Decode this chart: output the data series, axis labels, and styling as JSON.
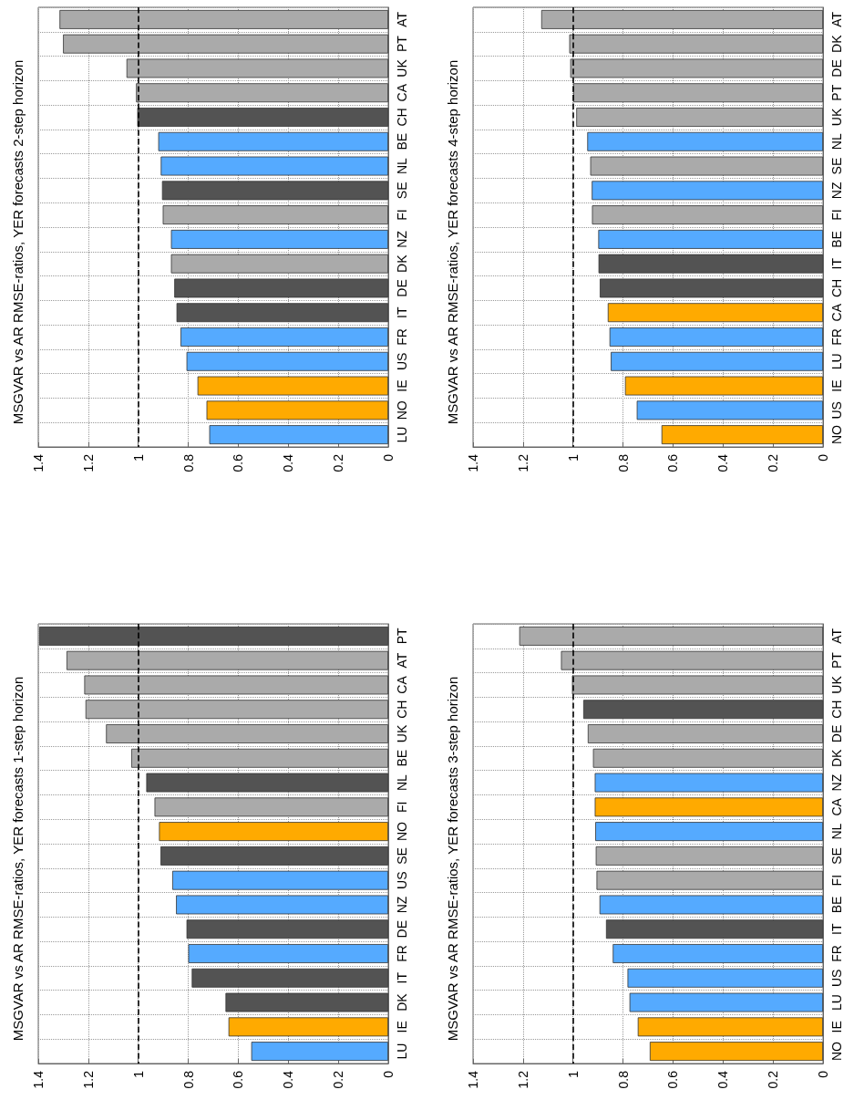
{
  "chart_data": [
    {
      "type": "bar",
      "orientation": "horizontal",
      "title": "MSGVAR vs AR RMSE-ratios, YER forecasts 1-step horizon",
      "categories": [
        "PT",
        "AT",
        "CA",
        "CH",
        "UK",
        "BE",
        "NL",
        "FI",
        "NO",
        "SE",
        "US",
        "NZ",
        "DE",
        "FR",
        "IT",
        "DK",
        "IE",
        "LU"
      ],
      "values": [
        1.396,
        1.287,
        1.216,
        1.211,
        1.129,
        1.028,
        0.968,
        0.935,
        0.917,
        0.911,
        0.864,
        0.849,
        0.807,
        0.8,
        0.786,
        0.651,
        0.639,
        0.548
      ],
      "colors": [
        "#535353",
        "#aaaaaa",
        "#aaaaaa",
        "#aaaaaa",
        "#aaaaaa",
        "#aaaaaa",
        "#535353",
        "#aaaaaa",
        "#ffaa00",
        "#535353",
        "#55aaff",
        "#55aaff",
        "#535353",
        "#55aaff",
        "#535353",
        "#535353",
        "#ffaa00",
        "#55aaff"
      ],
      "xlim": [
        1.4,
        0
      ],
      "xticks": [
        1.4,
        1.2,
        1,
        0.8,
        0.6,
        0.4,
        0.2,
        0
      ],
      "grid": true,
      "ref_lines": [
        {
          "axis": "x",
          "value": 1,
          "color": "#000000",
          "line_style": "dashed"
        }
      ]
    },
    {
      "type": "bar",
      "orientation": "horizontal",
      "title": "MSGVAR vs AR RMSE-ratios, YER forecasts 2-step horizon",
      "categories": [
        "AT",
        "PT",
        "UK",
        "CA",
        "CH",
        "BE",
        "NL",
        "SE",
        "FI",
        "NZ",
        "DK",
        "DE",
        "IT",
        "FR",
        "US",
        "IE",
        "NO",
        "LU"
      ],
      "values": [
        1.315,
        1.301,
        1.047,
        1.009,
        1.004,
        0.92,
        0.91,
        0.905,
        0.902,
        0.869,
        0.869,
        0.856,
        0.847,
        0.831,
        0.807,
        0.763,
        0.727,
        0.716
      ],
      "colors": [
        "#aaaaaa",
        "#aaaaaa",
        "#aaaaaa",
        "#aaaaaa",
        "#535353",
        "#55aaff",
        "#55aaff",
        "#535353",
        "#aaaaaa",
        "#55aaff",
        "#aaaaaa",
        "#535353",
        "#535353",
        "#55aaff",
        "#55aaff",
        "#ffaa00",
        "#ffaa00",
        "#55aaff"
      ],
      "xlim": [
        1.4,
        0
      ],
      "xticks": [
        1.4,
        1.2,
        1,
        0.8,
        0.6,
        0.4,
        0.2,
        0
      ],
      "grid": true,
      "ref_lines": [
        {
          "axis": "x",
          "value": 1,
          "color": "#000000",
          "line_style": "dashed"
        }
      ]
    },
    {
      "type": "bar",
      "orientation": "horizontal",
      "title": "MSGVAR vs AR RMSE-ratios, YER forecasts 3-step horizon",
      "categories": [
        "AT",
        "PT",
        "UK",
        "CH",
        "DE",
        "DK",
        "NZ",
        "CA",
        "NL",
        "SE",
        "FI",
        "BE",
        "IT",
        "FR",
        "US",
        "LU",
        "IE",
        "NO"
      ],
      "values": [
        1.215,
        1.048,
        1.004,
        0.959,
        0.941,
        0.92,
        0.913,
        0.913,
        0.911,
        0.909,
        0.906,
        0.894,
        0.868,
        0.841,
        0.782,
        0.774,
        0.741,
        0.693
      ],
      "colors": [
        "#aaaaaa",
        "#aaaaaa",
        "#aaaaaa",
        "#535353",
        "#aaaaaa",
        "#aaaaaa",
        "#55aaff",
        "#ffaa00",
        "#55aaff",
        "#aaaaaa",
        "#aaaaaa",
        "#55aaff",
        "#535353",
        "#55aaff",
        "#55aaff",
        "#55aaff",
        "#ffaa00",
        "#ffaa00"
      ],
      "xlim": [
        1.4,
        0
      ],
      "xticks": [
        1.4,
        1.2,
        1,
        0.8,
        0.6,
        0.4,
        0.2,
        0
      ],
      "grid": true,
      "ref_lines": [
        {
          "axis": "x",
          "value": 1,
          "color": "#000000",
          "line_style": "dashed"
        }
      ]
    },
    {
      "type": "bar",
      "orientation": "horizontal",
      "title": "MSGVAR vs AR RMSE-ratios, YER forecasts 4-step horizon",
      "categories": [
        "AT",
        "DK",
        "DE",
        "PT",
        "UK",
        "NL",
        "SE",
        "NZ",
        "FI",
        "BE",
        "IT",
        "CH",
        "CA",
        "FR",
        "LU",
        "IE",
        "US",
        "NO"
      ],
      "values": [
        1.127,
        1.015,
        1.011,
        0.999,
        0.987,
        0.943,
        0.931,
        0.925,
        0.924,
        0.899,
        0.898,
        0.893,
        0.861,
        0.854,
        0.849,
        0.792,
        0.745,
        0.646
      ],
      "colors": [
        "#aaaaaa",
        "#aaaaaa",
        "#aaaaaa",
        "#aaaaaa",
        "#aaaaaa",
        "#55aaff",
        "#aaaaaa",
        "#55aaff",
        "#aaaaaa",
        "#55aaff",
        "#535353",
        "#535353",
        "#ffaa00",
        "#55aaff",
        "#55aaff",
        "#ffaa00",
        "#55aaff",
        "#ffaa00"
      ],
      "xlim": [
        1.4,
        0
      ],
      "xticks": [
        1.4,
        1.2,
        1,
        0.8,
        0.6,
        0.4,
        0.2,
        0
      ],
      "grid": true,
      "ref_lines": [
        {
          "axis": "x",
          "value": 1,
          "color": "#000000",
          "line_style": "dashed"
        }
      ]
    }
  ]
}
